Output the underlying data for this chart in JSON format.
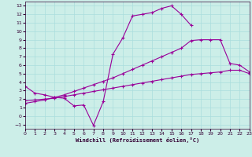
{
  "xlabel": "Windchill (Refroidissement éolien,°C)",
  "bg_color": "#cceee8",
  "grid_color": "#aadddd",
  "line_color": "#990099",
  "text_color": "#330033",
  "xlim": [
    0,
    23
  ],
  "ylim": [
    -1.5,
    13.5
  ],
  "curve_a_x": [
    0,
    1,
    2,
    3,
    4,
    5,
    6,
    7,
    8,
    9,
    10,
    11,
    12,
    13,
    14,
    15,
    16,
    17
  ],
  "curve_a_y": [
    3.5,
    2.7,
    2.5,
    2.2,
    2.1,
    1.2,
    1.3,
    -1.1,
    1.7,
    7.3,
    9.2,
    11.8,
    12.0,
    12.2,
    12.7,
    13.0,
    12.0,
    10.7
  ],
  "curve_b_x": [
    0,
    1,
    2,
    3,
    4,
    5,
    6,
    7,
    8,
    9,
    10,
    11,
    12,
    13,
    14,
    15,
    16,
    17,
    18,
    19,
    20,
    21,
    22,
    23
  ],
  "curve_b_y": [
    1.5,
    1.7,
    1.9,
    2.2,
    2.5,
    2.9,
    3.3,
    3.7,
    4.1,
    4.5,
    5.0,
    5.5,
    6.0,
    6.5,
    7.0,
    7.5,
    8.0,
    8.9,
    9.0,
    9.0,
    9.0,
    6.2,
    6.0,
    5.2
  ],
  "curve_c_x": [
    0,
    1,
    2,
    3,
    4,
    5,
    6,
    7,
    8,
    9,
    10,
    11,
    12,
    13,
    14,
    15,
    16,
    17,
    18,
    19,
    20,
    21,
    22,
    23
  ],
  "curve_c_y": [
    1.8,
    1.9,
    2.0,
    2.1,
    2.3,
    2.5,
    2.7,
    2.9,
    3.1,
    3.3,
    3.5,
    3.7,
    3.9,
    4.1,
    4.3,
    4.5,
    4.7,
    4.9,
    5.0,
    5.1,
    5.2,
    5.4,
    5.4,
    5.0
  ]
}
